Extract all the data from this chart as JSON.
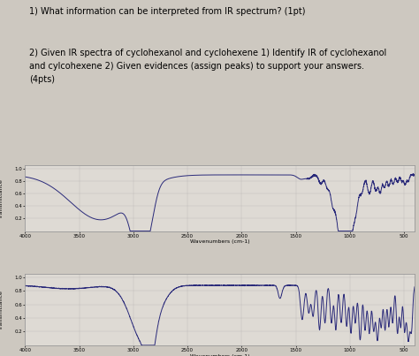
{
  "background_color": "#cdc8c0",
  "text1": "1) What information can be interpreted from IR spectrum? (1pt)",
  "text2": "2) Given IR spectra of cyclohexanol and cyclohexene 1) Identify IR of cyclohexanol\nand cylcohexene 2) Given evidences (assign peaks) to support your answers.\n(4pts)",
  "xlabel": "Wavenumbers (cm-1)",
  "ylabel": "Transmittance",
  "line_color": "#2a2a7a",
  "grid_color": "#b0b0b0",
  "chart_bg": "#dedad4",
  "chart_border": "#999999",
  "xticks": [
    4000,
    3500,
    3000,
    2500,
    2000,
    1500,
    1000,
    500
  ],
  "yticks_s1": [
    0.2,
    0.4,
    0.6,
    0.8,
    1.0
  ],
  "text_fontsize": 7.0,
  "axis_fontsize": 4.5,
  "tick_fontsize": 4.0
}
